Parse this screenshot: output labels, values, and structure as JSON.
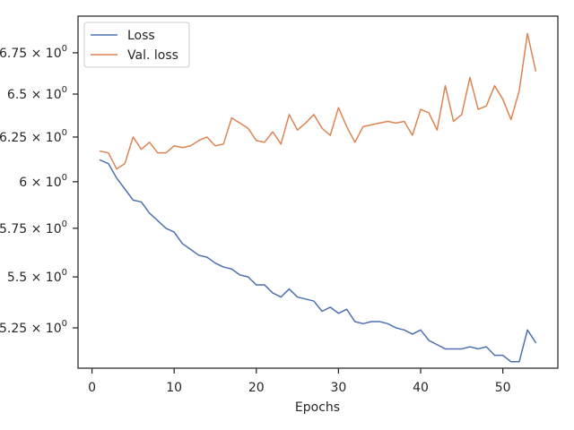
{
  "chart_data": {
    "type": "line",
    "title": "",
    "xlabel": "Epochs",
    "ylabel": "",
    "yscale": "log",
    "xlim": [
      -1.7,
      56.7
    ],
    "ylim": [
      5.06,
      6.98
    ],
    "x_ticks": [
      0,
      10,
      20,
      30,
      40,
      50
    ],
    "x_tick_labels": [
      "0",
      "10",
      "20",
      "30",
      "40",
      "50"
    ],
    "y_ticks": [
      5.25,
      5.5,
      5.75,
      6.0,
      6.25,
      6.5,
      6.75
    ],
    "y_tick_labels": [
      "5.25",
      "5.5",
      "5.75",
      "6",
      "6.25",
      "6.5",
      "6.75"
    ],
    "y_tick_suffix": "× 10",
    "y_tick_exponent": "0",
    "grid": false,
    "legend_position": "upper-left",
    "series": [
      {
        "name": "Loss",
        "color": "#4c72b0",
        "x": [
          1,
          2,
          3,
          4,
          5,
          6,
          7,
          8,
          9,
          10,
          11,
          12,
          13,
          14,
          15,
          16,
          17,
          18,
          19,
          20,
          21,
          22,
          23,
          24,
          25,
          26,
          27,
          28,
          29,
          30,
          31,
          32,
          33,
          34,
          35,
          36,
          37,
          38,
          39,
          40,
          41,
          42,
          43,
          44,
          45,
          46,
          47,
          48,
          49,
          50,
          51,
          52,
          53,
          54
        ],
        "values": [
          6.12,
          6.1,
          6.02,
          5.96,
          5.9,
          5.89,
          5.83,
          5.79,
          5.75,
          5.73,
          5.67,
          5.64,
          5.61,
          5.6,
          5.57,
          5.55,
          5.54,
          5.51,
          5.5,
          5.46,
          5.46,
          5.42,
          5.4,
          5.44,
          5.4,
          5.39,
          5.38,
          5.33,
          5.35,
          5.32,
          5.34,
          5.28,
          5.27,
          5.28,
          5.28,
          5.27,
          5.25,
          5.24,
          5.22,
          5.24,
          5.19,
          5.17,
          5.15,
          5.15,
          5.15,
          5.16,
          5.15,
          5.16,
          5.12,
          5.12,
          5.09,
          5.09,
          5.24,
          5.18
        ]
      },
      {
        "name": "Val. loss",
        "color": "#dd8452",
        "x": [
          1,
          2,
          3,
          4,
          5,
          6,
          7,
          8,
          9,
          10,
          11,
          12,
          13,
          14,
          15,
          16,
          17,
          18,
          19,
          20,
          21,
          22,
          23,
          24,
          25,
          26,
          27,
          28,
          29,
          30,
          31,
          32,
          33,
          34,
          35,
          36,
          37,
          38,
          39,
          40,
          41,
          42,
          43,
          44,
          45,
          46,
          47,
          48,
          49,
          50,
          51,
          52,
          53,
          54
        ],
        "values": [
          6.17,
          6.16,
          6.07,
          6.1,
          6.25,
          6.18,
          6.22,
          6.16,
          6.16,
          6.2,
          6.19,
          6.2,
          6.23,
          6.25,
          6.2,
          6.21,
          6.36,
          6.33,
          6.3,
          6.23,
          6.22,
          6.28,
          6.21,
          6.38,
          6.29,
          6.33,
          6.38,
          6.3,
          6.26,
          6.42,
          6.31,
          6.22,
          6.31,
          6.32,
          6.33,
          6.34,
          6.33,
          6.34,
          6.26,
          6.41,
          6.39,
          6.29,
          6.55,
          6.34,
          6.38,
          6.6,
          6.41,
          6.43,
          6.55,
          6.47,
          6.35,
          6.52,
          6.87,
          6.64
        ]
      }
    ]
  }
}
